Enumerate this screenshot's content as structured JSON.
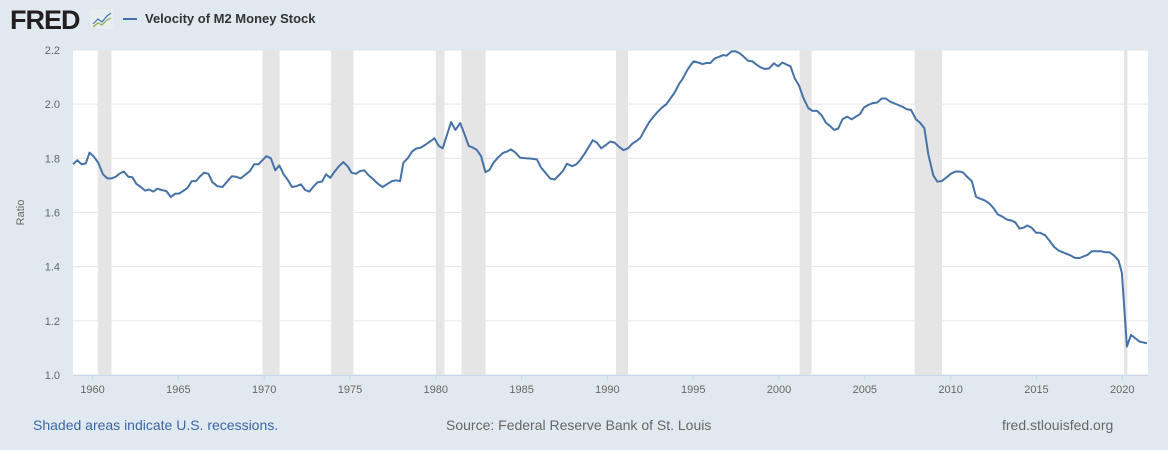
{
  "header": {
    "logo_text": "FRED",
    "legend_label": "Velocity of M2 Money Stock"
  },
  "footer": {
    "recession_note": "Shaded areas indicate U.S. recessions.",
    "source": "Source: Federal Reserve Bank of St. Louis",
    "site": "fred.stlouisfed.org"
  },
  "colors": {
    "line": "#4572a7",
    "recession": "#e5e5e5",
    "background": "#e1e9f0",
    "plot": "#ffffff",
    "grid": "#e6e6e6"
  },
  "chart_data": {
    "type": "line",
    "title": "",
    "xlabel": "",
    "ylabel": "Ratio",
    "xlim": [
      1958.86,
      2021.5
    ],
    "ylim": [
      1.0,
      2.2
    ],
    "grid": true,
    "x_ticks": [
      "1960",
      "1965",
      "1970",
      "1975",
      "1980",
      "1985",
      "1990",
      "1995",
      "2000",
      "2005",
      "2010",
      "2015",
      "2020"
    ],
    "y_ticks": [
      "1.0",
      "1.2",
      "1.4",
      "1.6",
      "1.8",
      "2.0",
      "2.2"
    ],
    "recessions": [
      [
        1960.3,
        1961.1
      ],
      [
        1969.9,
        1970.9
      ],
      [
        1973.9,
        1975.2
      ],
      [
        1980.0,
        1980.5
      ],
      [
        1981.5,
        1982.9
      ],
      [
        1990.5,
        1991.2
      ],
      [
        2001.2,
        2001.9
      ],
      [
        2007.9,
        2009.5
      ],
      [
        2020.1,
        2020.3
      ]
    ],
    "series": [
      {
        "name": "Velocity of M2 Money Stock",
        "points": [
          [
            1958.86,
            1.778
          ],
          [
            1959.11,
            1.793
          ],
          [
            1959.36,
            1.778
          ],
          [
            1959.6,
            1.781
          ],
          [
            1959.83,
            1.821
          ],
          [
            1960.08,
            1.806
          ],
          [
            1960.33,
            1.784
          ],
          [
            1960.61,
            1.741
          ],
          [
            1960.86,
            1.726
          ],
          [
            1961.11,
            1.726
          ],
          [
            1961.35,
            1.732
          ],
          [
            1961.58,
            1.744
          ],
          [
            1961.83,
            1.751
          ],
          [
            1962.08,
            1.732
          ],
          [
            1962.32,
            1.73
          ],
          [
            1962.55,
            1.706
          ],
          [
            1962.81,
            1.694
          ],
          [
            1963.06,
            1.681
          ],
          [
            1963.29,
            1.685
          ],
          [
            1963.54,
            1.677
          ],
          [
            1963.77,
            1.688
          ],
          [
            1964.03,
            1.683
          ],
          [
            1964.3,
            1.679
          ],
          [
            1964.56,
            1.657
          ],
          [
            1964.81,
            1.669
          ],
          [
            1965.04,
            1.67
          ],
          [
            1965.27,
            1.679
          ],
          [
            1965.53,
            1.691
          ],
          [
            1965.78,
            1.716
          ],
          [
            1966.02,
            1.716
          ],
          [
            1966.27,
            1.734
          ],
          [
            1966.5,
            1.747
          ],
          [
            1966.75,
            1.743
          ],
          [
            1966.98,
            1.712
          ],
          [
            1967.28,
            1.697
          ],
          [
            1967.57,
            1.694
          ],
          [
            1967.86,
            1.716
          ],
          [
            1968.12,
            1.734
          ],
          [
            1968.38,
            1.732
          ],
          [
            1968.64,
            1.726
          ],
          [
            1968.93,
            1.741
          ],
          [
            1969.17,
            1.753
          ],
          [
            1969.42,
            1.778
          ],
          [
            1969.67,
            1.778
          ],
          [
            1969.9,
            1.793
          ],
          [
            1970.13,
            1.808
          ],
          [
            1970.39,
            1.8
          ],
          [
            1970.64,
            1.756
          ],
          [
            1970.88,
            1.774
          ],
          [
            1971.13,
            1.741
          ],
          [
            1971.36,
            1.722
          ],
          [
            1971.62,
            1.694
          ],
          [
            1971.88,
            1.697
          ],
          [
            1972.14,
            1.704
          ],
          [
            1972.39,
            1.683
          ],
          [
            1972.63,
            1.677
          ],
          [
            1972.86,
            1.695
          ],
          [
            1973.11,
            1.712
          ],
          [
            1973.37,
            1.714
          ],
          [
            1973.6,
            1.741
          ],
          [
            1973.85,
            1.728
          ],
          [
            1974.08,
            1.749
          ],
          [
            1974.33,
            1.769
          ],
          [
            1974.61,
            1.786
          ],
          [
            1974.86,
            1.771
          ],
          [
            1975.09,
            1.747
          ],
          [
            1975.35,
            1.743
          ],
          [
            1975.58,
            1.753
          ],
          [
            1975.83,
            1.756
          ],
          [
            1976.09,
            1.737
          ],
          [
            1976.32,
            1.725
          ],
          [
            1976.61,
            1.707
          ],
          [
            1976.9,
            1.694
          ],
          [
            1977.19,
            1.706
          ],
          [
            1977.45,
            1.716
          ],
          [
            1977.68,
            1.719
          ],
          [
            1977.92,
            1.716
          ],
          [
            1978.11,
            1.784
          ],
          [
            1978.36,
            1.8
          ],
          [
            1978.62,
            1.825
          ],
          [
            1978.85,
            1.836
          ],
          [
            1979.14,
            1.84
          ],
          [
            1979.43,
            1.852
          ],
          [
            1979.67,
            1.862
          ],
          [
            1979.92,
            1.874
          ],
          [
            1980.17,
            1.846
          ],
          [
            1980.4,
            1.837
          ],
          [
            1980.89,
            1.934
          ],
          [
            1981.14,
            1.905
          ],
          [
            1981.42,
            1.93
          ],
          [
            1981.67,
            1.889
          ],
          [
            1981.92,
            1.846
          ],
          [
            1982.15,
            1.84
          ],
          [
            1982.39,
            1.831
          ],
          [
            1982.64,
            1.808
          ],
          [
            1982.89,
            1.749
          ],
          [
            1983.13,
            1.757
          ],
          [
            1983.36,
            1.784
          ],
          [
            1983.61,
            1.802
          ],
          [
            1983.9,
            1.819
          ],
          [
            1984.14,
            1.825
          ],
          [
            1984.39,
            1.833
          ],
          [
            1984.64,
            1.821
          ],
          [
            1984.92,
            1.802
          ],
          [
            1985.23,
            1.8
          ],
          [
            1985.56,
            1.799
          ],
          [
            1985.89,
            1.796
          ],
          [
            1986.14,
            1.765
          ],
          [
            1986.39,
            1.747
          ],
          [
            1986.67,
            1.725
          ],
          [
            1986.92,
            1.722
          ],
          [
            1987.17,
            1.737
          ],
          [
            1987.4,
            1.753
          ],
          [
            1987.64,
            1.78
          ],
          [
            1987.95,
            1.771
          ],
          [
            1988.19,
            1.778
          ],
          [
            1988.42,
            1.794
          ],
          [
            1988.67,
            1.817
          ],
          [
            1988.92,
            1.843
          ],
          [
            1989.15,
            1.867
          ],
          [
            1989.39,
            1.858
          ],
          [
            1989.64,
            1.837
          ],
          [
            1989.9,
            1.849
          ],
          [
            1990.17,
            1.862
          ],
          [
            1990.42,
            1.858
          ],
          [
            1990.67,
            1.843
          ],
          [
            1990.94,
            1.83
          ],
          [
            1991.2,
            1.837
          ],
          [
            1991.45,
            1.854
          ],
          [
            1991.69,
            1.864
          ],
          [
            1991.92,
            1.876
          ],
          [
            1992.17,
            1.905
          ],
          [
            1992.42,
            1.932
          ],
          [
            1992.65,
            1.951
          ],
          [
            1992.89,
            1.969
          ],
          [
            1993.14,
            1.985
          ],
          [
            1993.44,
            2.0
          ],
          [
            1993.67,
            2.021
          ],
          [
            1993.92,
            2.043
          ],
          [
            1994.17,
            2.074
          ],
          [
            1994.4,
            2.095
          ],
          [
            1994.64,
            2.124
          ],
          [
            1994.84,
            2.144
          ],
          [
            1995.03,
            2.158
          ],
          [
            1995.28,
            2.154
          ],
          [
            1995.54,
            2.148
          ],
          [
            1995.77,
            2.152
          ],
          [
            1996.0,
            2.152
          ],
          [
            1996.25,
            2.169
          ],
          [
            1996.51,
            2.175
          ],
          [
            1996.74,
            2.181
          ],
          [
            1996.94,
            2.179
          ],
          [
            1997.23,
            2.195
          ],
          [
            1997.48,
            2.195
          ],
          [
            1997.71,
            2.188
          ],
          [
            1997.95,
            2.175
          ],
          [
            1998.2,
            2.16
          ],
          [
            1998.45,
            2.158
          ],
          [
            1998.69,
            2.146
          ],
          [
            1998.92,
            2.136
          ],
          [
            1999.17,
            2.13
          ],
          [
            1999.42,
            2.132
          ],
          [
            1999.7,
            2.151
          ],
          [
            1999.95,
            2.14
          ],
          [
            2000.2,
            2.154
          ],
          [
            2000.44,
            2.146
          ],
          [
            2000.67,
            2.14
          ],
          [
            2000.92,
            2.095
          ],
          [
            2001.17,
            2.068
          ],
          [
            2001.41,
            2.025
          ],
          [
            2001.7,
            1.986
          ],
          [
            2001.95,
            1.975
          ],
          [
            2002.22,
            1.975
          ],
          [
            2002.48,
            1.959
          ],
          [
            2002.73,
            1.932
          ],
          [
            2002.96,
            1.92
          ],
          [
            2003.21,
            1.905
          ],
          [
            2003.45,
            1.91
          ],
          [
            2003.7,
            1.944
          ],
          [
            2003.97,
            1.954
          ],
          [
            2004.23,
            1.944
          ],
          [
            2004.48,
            1.954
          ],
          [
            2004.71,
            1.963
          ],
          [
            2004.96,
            1.988
          ],
          [
            2005.2,
            1.997
          ],
          [
            2005.46,
            2.004
          ],
          [
            2005.72,
            2.006
          ],
          [
            2005.98,
            2.021
          ],
          [
            2006.23,
            2.021
          ],
          [
            2006.46,
            2.01
          ],
          [
            2006.72,
            2.003
          ],
          [
            2006.95,
            1.997
          ],
          [
            2007.21,
            1.99
          ],
          [
            2007.44,
            1.981
          ],
          [
            2007.69,
            1.979
          ],
          [
            2007.98,
            1.944
          ],
          [
            2008.21,
            1.932
          ],
          [
            2008.47,
            1.911
          ],
          [
            2008.7,
            1.815
          ],
          [
            2008.99,
            1.737
          ],
          [
            2009.22,
            1.714
          ],
          [
            2009.48,
            1.716
          ],
          [
            2009.73,
            1.728
          ],
          [
            2010.01,
            1.743
          ],
          [
            2010.26,
            1.751
          ],
          [
            2010.55,
            1.751
          ],
          [
            2010.74,
            1.747
          ],
          [
            2010.97,
            1.731
          ],
          [
            2011.23,
            1.716
          ],
          [
            2011.48,
            1.658
          ],
          [
            2011.72,
            1.651
          ],
          [
            2012.01,
            1.644
          ],
          [
            2012.26,
            1.633
          ],
          [
            2012.49,
            1.617
          ],
          [
            2012.75,
            1.593
          ],
          [
            2012.98,
            1.586
          ],
          [
            2013.27,
            1.574
          ],
          [
            2013.56,
            1.57
          ],
          [
            2013.76,
            1.564
          ],
          [
            2014.01,
            1.541
          ],
          [
            2014.24,
            1.544
          ],
          [
            2014.47,
            1.552
          ],
          [
            2014.73,
            1.543
          ],
          [
            2014.98,
            1.525
          ],
          [
            2015.22,
            1.525
          ],
          [
            2015.51,
            1.516
          ],
          [
            2015.76,
            1.496
          ],
          [
            2016.03,
            1.473
          ],
          [
            2016.28,
            1.46
          ],
          [
            2016.54,
            1.453
          ],
          [
            2016.77,
            1.447
          ],
          [
            2017.01,
            1.441
          ],
          [
            2017.26,
            1.432
          ],
          [
            2017.51,
            1.432
          ],
          [
            2017.74,
            1.438
          ],
          [
            2017.98,
            1.444
          ],
          [
            2018.23,
            1.457
          ],
          [
            2018.48,
            1.457
          ],
          [
            2018.76,
            1.457
          ],
          [
            2019.01,
            1.453
          ],
          [
            2019.26,
            1.453
          ],
          [
            2019.53,
            1.441
          ],
          [
            2019.78,
            1.423
          ],
          [
            2019.98,
            1.377
          ],
          [
            2020.27,
            1.105
          ],
          [
            2020.51,
            1.148
          ],
          [
            2021.01,
            1.123
          ],
          [
            2021.44,
            1.117
          ]
        ]
      }
    ]
  }
}
